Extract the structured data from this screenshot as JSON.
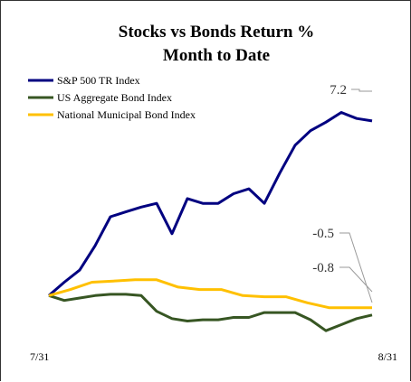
{
  "chart_data": {
    "type": "line",
    "title": "Stocks vs Bonds Return  %",
    "subtitle": "Month to Date",
    "xlabel": "",
    "ylabel": "",
    "x_tick_labels": [
      "7/31",
      "8/31"
    ],
    "ylim": [
      -2.0,
      8.5
    ],
    "grid": false,
    "legend_position": "top-left",
    "series": [
      {
        "name": "S&P 500 TR Index",
        "color": "#000080",
        "values": [
          0.0,
          0.55,
          1.05,
          2.05,
          3.25,
          3.45,
          3.65,
          3.8,
          2.55,
          4.0,
          3.8,
          3.8,
          4.2,
          4.4,
          3.8,
          5.05,
          6.2,
          6.8,
          7.15,
          7.55,
          7.3,
          7.2
        ]
      },
      {
        "name": "US Aggregate Bond Index",
        "color": "#375623",
        "values": [
          0.0,
          -0.2,
          -0.1,
          0.0,
          0.05,
          0.05,
          0.0,
          -0.65,
          -0.95,
          -1.05,
          -1.0,
          -1.0,
          -0.9,
          -0.9,
          -0.7,
          -0.7,
          -0.7,
          -1.0,
          -1.45,
          -1.2,
          -0.95,
          -0.8
        ]
      },
      {
        "name": "National Municipal Bond Index",
        "color": "#FFC000",
        "values": [
          0.0,
          0.25,
          0.55,
          0.6,
          0.65,
          0.65,
          0.35,
          0.25,
          0.25,
          0.0,
          -0.05,
          -0.05,
          -0.3,
          -0.5,
          -0.5,
          -0.5
        ]
      }
    ],
    "annotations": [
      {
        "text": "7.2",
        "series": "S&P 500 TR Index"
      },
      {
        "text": "-0.5",
        "series": "National Municipal Bond Index"
      },
      {
        "text": "-0.8",
        "series": "US Aggregate Bond Index"
      }
    ]
  }
}
